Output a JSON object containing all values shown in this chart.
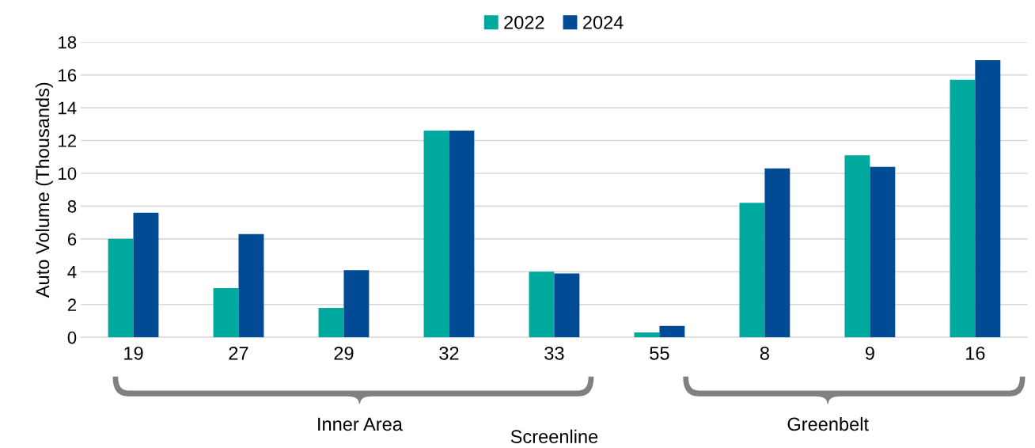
{
  "chart_data": {
    "type": "bar",
    "categories": [
      "19",
      "27",
      "29",
      "32",
      "33",
      "55",
      "8",
      "9",
      "16"
    ],
    "series": [
      {
        "name": "2022",
        "color": "#00a99d",
        "values": [
          6.0,
          3.0,
          1.8,
          12.6,
          4.0,
          0.3,
          8.2,
          11.1,
          15.7
        ]
      },
      {
        "name": "2024",
        "color": "#004b93",
        "values": [
          7.6,
          6.3,
          4.1,
          12.6,
          3.9,
          0.7,
          10.3,
          10.4,
          16.9
        ]
      }
    ],
    "ylabel": "Auto Volume (Thousands)",
    "xlabel": "Screenline",
    "annotations": [
      "Inner Area",
      "Greenbelt"
    ],
    "ylim": [
      0,
      18
    ],
    "yticks": [
      0,
      2,
      4,
      6,
      8,
      10,
      12,
      14,
      16,
      18
    ],
    "grid": "y",
    "legend": "top"
  }
}
